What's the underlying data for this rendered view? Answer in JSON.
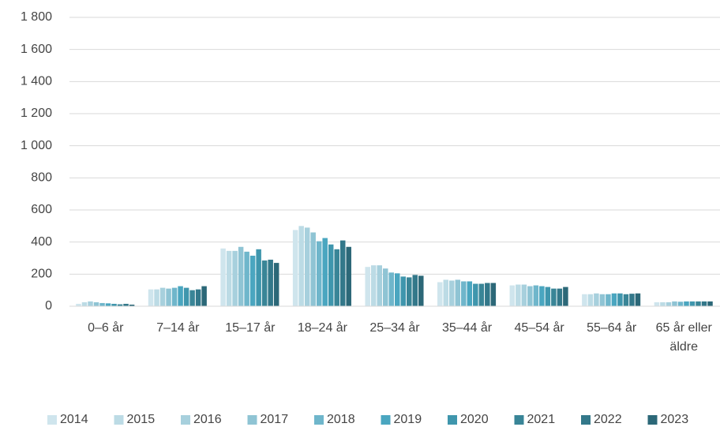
{
  "chart_data": {
    "type": "bar",
    "categories": [
      "0–6 år",
      "7–14 år",
      "15–17 år",
      "18–24 år",
      "25–34 år",
      "35–44 år",
      "45–54 år",
      "55–64 år",
      "65 år eller äldre"
    ],
    "series": [
      {
        "name": "2014",
        "color": "#cfe5ed",
        "values": [
          15,
          105,
          360,
          475,
          245,
          150,
          130,
          75,
          25
        ]
      },
      {
        "name": "2015",
        "color": "#bcdbe5",
        "values": [
          25,
          105,
          345,
          500,
          255,
          165,
          135,
          75,
          25
        ]
      },
      {
        "name": "2016",
        "color": "#a7d0dd",
        "values": [
          30,
          115,
          345,
          490,
          255,
          160,
          135,
          80,
          25
        ]
      },
      {
        "name": "2017",
        "color": "#8fc4d4",
        "values": [
          25,
          110,
          370,
          460,
          235,
          165,
          125,
          75,
          30
        ]
      },
      {
        "name": "2018",
        "color": "#6fb6cb",
        "values": [
          20,
          115,
          340,
          405,
          210,
          155,
          130,
          75,
          28
        ]
      },
      {
        "name": "2019",
        "color": "#4aa6c0",
        "values": [
          18,
          125,
          315,
          425,
          205,
          155,
          125,
          80,
          30
        ]
      },
      {
        "name": "2020",
        "color": "#3f96ad",
        "values": [
          15,
          115,
          355,
          385,
          185,
          140,
          120,
          80,
          30
        ]
      },
      {
        "name": "2021",
        "color": "#398597",
        "values": [
          12,
          100,
          285,
          355,
          180,
          140,
          110,
          75,
          30
        ]
      },
      {
        "name": "2022",
        "color": "#33788a",
        "values": [
          15,
          105,
          290,
          410,
          195,
          145,
          110,
          78,
          30
        ]
      },
      {
        "name": "2023",
        "color": "#2c6878",
        "values": [
          10,
          125,
          270,
          370,
          190,
          145,
          120,
          80,
          30
        ]
      }
    ],
    "ylim": [
      0,
      1800
    ],
    "yticks": [
      0,
      200,
      400,
      600,
      800,
      {
        "value": 1000,
        "label": "1 000"
      },
      {
        "value": 1200,
        "label": "1 200"
      },
      {
        "value": 1400,
        "label": "1 400"
      },
      {
        "value": 1600,
        "label": "1 600"
      },
      {
        "value": 1800,
        "label": "1 800"
      }
    ],
    "grid": true,
    "legend": "bottom"
  }
}
